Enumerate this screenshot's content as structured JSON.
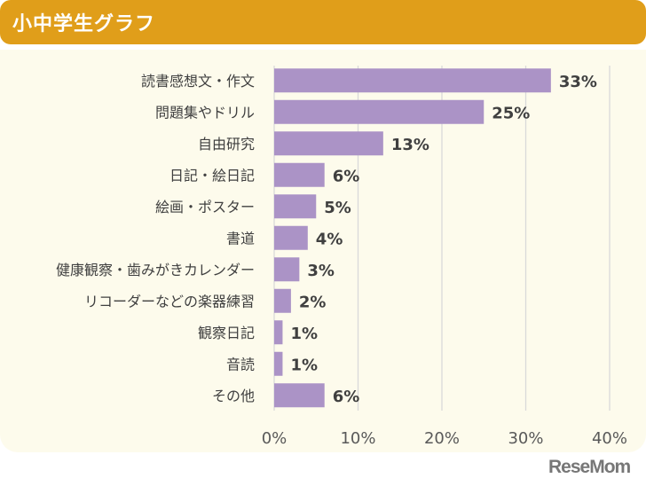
{
  "header": {
    "title": "小中学生グラフ"
  },
  "chart_data": {
    "type": "bar",
    "orientation": "horizontal",
    "categories": [
      "読書感想文・作文",
      "問題集やドリル",
      "自由研究",
      "日記・絵日記",
      "絵画・ポスター",
      "書道",
      "健康観察・歯みがきカレンダー",
      "リコーダーなどの楽器練習",
      "観察日記",
      "音読",
      "その他"
    ],
    "values": [
      33,
      25,
      13,
      6,
      5,
      4,
      3,
      2,
      1,
      1,
      6
    ],
    "value_labels": [
      "33%",
      "25%",
      "13%",
      "6%",
      "5%",
      "4%",
      "3%",
      "2%",
      "1%",
      "1%",
      "6%"
    ],
    "xlim": [
      0,
      40
    ],
    "xticks": [
      "0%",
      "10%",
      "20%",
      "30%",
      "40%"
    ],
    "grid": "vertical",
    "bar_color": "#AB93C6"
  },
  "watermark": "ReseMom"
}
